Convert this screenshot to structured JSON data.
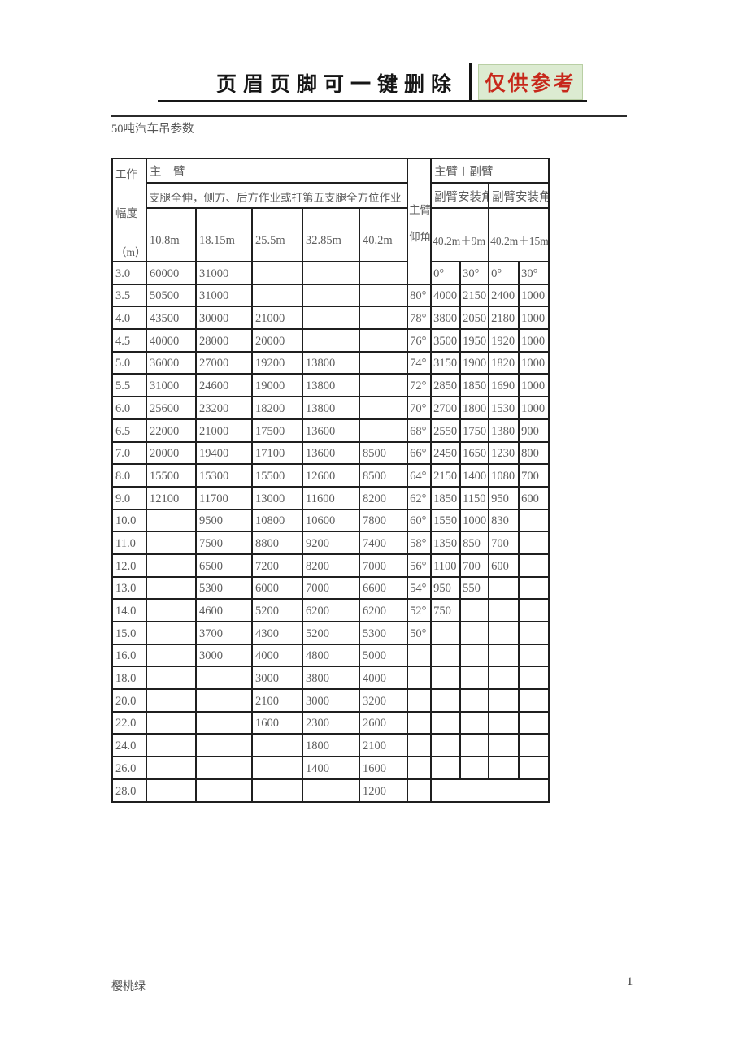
{
  "header": {
    "title": "页眉页脚可一键删除",
    "badge": "仅供参考",
    "badge_text_color": "#c7281b",
    "badge_bg_color": "#dcebd1"
  },
  "doc": {
    "title": "50吨汽车吊参数"
  },
  "table": {
    "corner": {
      "line1": "工作",
      "line2": "幅度",
      "line3": "（m）"
    },
    "main_boom_label": "主　臂",
    "main_boom_note": "支腿全伸，侧方、后方作业或打第五支腿全方位作业",
    "boom_lengths": [
      "10.8m",
      "18.15m",
      "25.5m",
      "32.85m",
      "40.2m"
    ],
    "elev_label": {
      "line1": "主臂",
      "line2": "仰角"
    },
    "jib_group_label": "主臂＋副臂",
    "jib_angle_label": "副臂安装角",
    "jib_configs": [
      "40.2m＋9m",
      "40.2m＋15m"
    ],
    "rows": [
      {
        "radius": "3.0",
        "main": [
          "60000",
          "31000",
          "",
          "",
          ""
        ],
        "angle": null,
        "jib": [
          "0°",
          "30°",
          "0°",
          "30°"
        ]
      },
      {
        "radius": "3.5",
        "main": [
          "50500",
          "31000",
          "",
          "",
          ""
        ],
        "angle": "80°",
        "jib": [
          "4000",
          "2150",
          "2400",
          "1000"
        ]
      },
      {
        "radius": "4.0",
        "main": [
          "43500",
          "30000",
          "21000",
          "",
          ""
        ],
        "angle": "78°",
        "jib": [
          "3800",
          "2050",
          "2180",
          "1000"
        ]
      },
      {
        "radius": "4.5",
        "main": [
          "40000",
          "28000",
          "20000",
          "",
          ""
        ],
        "angle": "76°",
        "jib": [
          "3500",
          "1950",
          "1920",
          "1000"
        ]
      },
      {
        "radius": "5.0",
        "main": [
          "36000",
          "27000",
          "19200",
          "13800",
          ""
        ],
        "angle": "74°",
        "jib": [
          "3150",
          "1900",
          "1820",
          "1000"
        ]
      },
      {
        "radius": "5.5",
        "main": [
          "31000",
          "24600",
          "19000",
          "13800",
          ""
        ],
        "angle": "72°",
        "jib": [
          "2850",
          "1850",
          "1690",
          "1000"
        ]
      },
      {
        "radius": "6.0",
        "main": [
          "25600",
          "23200",
          "18200",
          "13800",
          ""
        ],
        "angle": "70°",
        "jib": [
          "2700",
          "1800",
          "1530",
          "1000"
        ]
      },
      {
        "radius": "6.5",
        "main": [
          "22000",
          "21000",
          "17500",
          "13600",
          ""
        ],
        "angle": "68°",
        "jib": [
          "2550",
          "1750",
          "1380",
          "900"
        ]
      },
      {
        "radius": "7.0",
        "main": [
          "20000",
          "19400",
          "17100",
          "13600",
          "8500"
        ],
        "angle": "66°",
        "jib": [
          "2450",
          "1650",
          "1230",
          "800"
        ]
      },
      {
        "radius": "8.0",
        "main": [
          "15500",
          "15300",
          "15500",
          "12600",
          "8500"
        ],
        "angle": "64°",
        "jib": [
          "2150",
          "1400",
          "1080",
          "700"
        ]
      },
      {
        "radius": "9.0",
        "main": [
          "12100",
          "11700",
          "13000",
          "11600",
          "8200"
        ],
        "angle": "62°",
        "jib": [
          "1850",
          "1150",
          "950",
          "600"
        ]
      },
      {
        "radius": "10.0",
        "main": [
          "",
          "9500",
          "10800",
          "10600",
          "7800"
        ],
        "angle": "60°",
        "jib": [
          "1550",
          "1000",
          "830",
          ""
        ]
      },
      {
        "radius": "11.0",
        "main": [
          "",
          "7500",
          "8800",
          "9200",
          "7400"
        ],
        "angle": "58°",
        "jib": [
          "1350",
          "850",
          "700",
          ""
        ]
      },
      {
        "radius": "12.0",
        "main": [
          "",
          "6500",
          "7200",
          "8200",
          "7000"
        ],
        "angle": "56°",
        "jib": [
          "1100",
          "700",
          "600",
          ""
        ]
      },
      {
        "radius": "13.0",
        "main": [
          "",
          "5300",
          "6000",
          "7000",
          "6600"
        ],
        "angle": "54°",
        "jib": [
          "950",
          "550",
          "",
          ""
        ]
      },
      {
        "radius": "14.0",
        "main": [
          "",
          "4600",
          "5200",
          "6200",
          "6200"
        ],
        "angle": "52°",
        "jib": [
          "750",
          "",
          "",
          ""
        ]
      },
      {
        "radius": "15.0",
        "main": [
          "",
          "3700",
          "4300",
          "5200",
          "5300"
        ],
        "angle": "50°",
        "jib": [
          "",
          "",
          "",
          ""
        ]
      },
      {
        "radius": "16.0",
        "main": [
          "",
          "3000",
          "4000",
          "4800",
          "5000"
        ],
        "angle": "",
        "jib": [
          "",
          "",
          "",
          ""
        ]
      },
      {
        "radius": "18.0",
        "main": [
          "",
          "",
          "3000",
          "3800",
          "4000"
        ],
        "angle": "",
        "jib": [
          "",
          "",
          "",
          ""
        ]
      },
      {
        "radius": "20.0",
        "main": [
          "",
          "",
          "2100",
          "3000",
          "3200"
        ],
        "angle": "",
        "jib": [
          "",
          "",
          "",
          ""
        ]
      },
      {
        "radius": "22.0",
        "main": [
          "",
          "",
          "1600",
          "2300",
          "2600"
        ],
        "angle": "",
        "jib": [
          "",
          "",
          "",
          ""
        ]
      },
      {
        "radius": "24.0",
        "main": [
          "",
          "",
          "",
          "1800",
          "2100"
        ],
        "angle": "",
        "jib": [
          "",
          "",
          "",
          ""
        ]
      },
      {
        "radius": "26.0",
        "main": [
          "",
          "",
          "",
          "1400",
          "1600"
        ],
        "angle": "",
        "jib": [
          "",
          "",
          "",
          ""
        ]
      },
      {
        "radius": "28.0",
        "main": [
          "",
          "",
          "",
          "",
          "1200"
        ],
        "angle": "",
        "jib": null
      }
    ]
  },
  "footer": {
    "left": "樱桃绿",
    "page": "1"
  }
}
